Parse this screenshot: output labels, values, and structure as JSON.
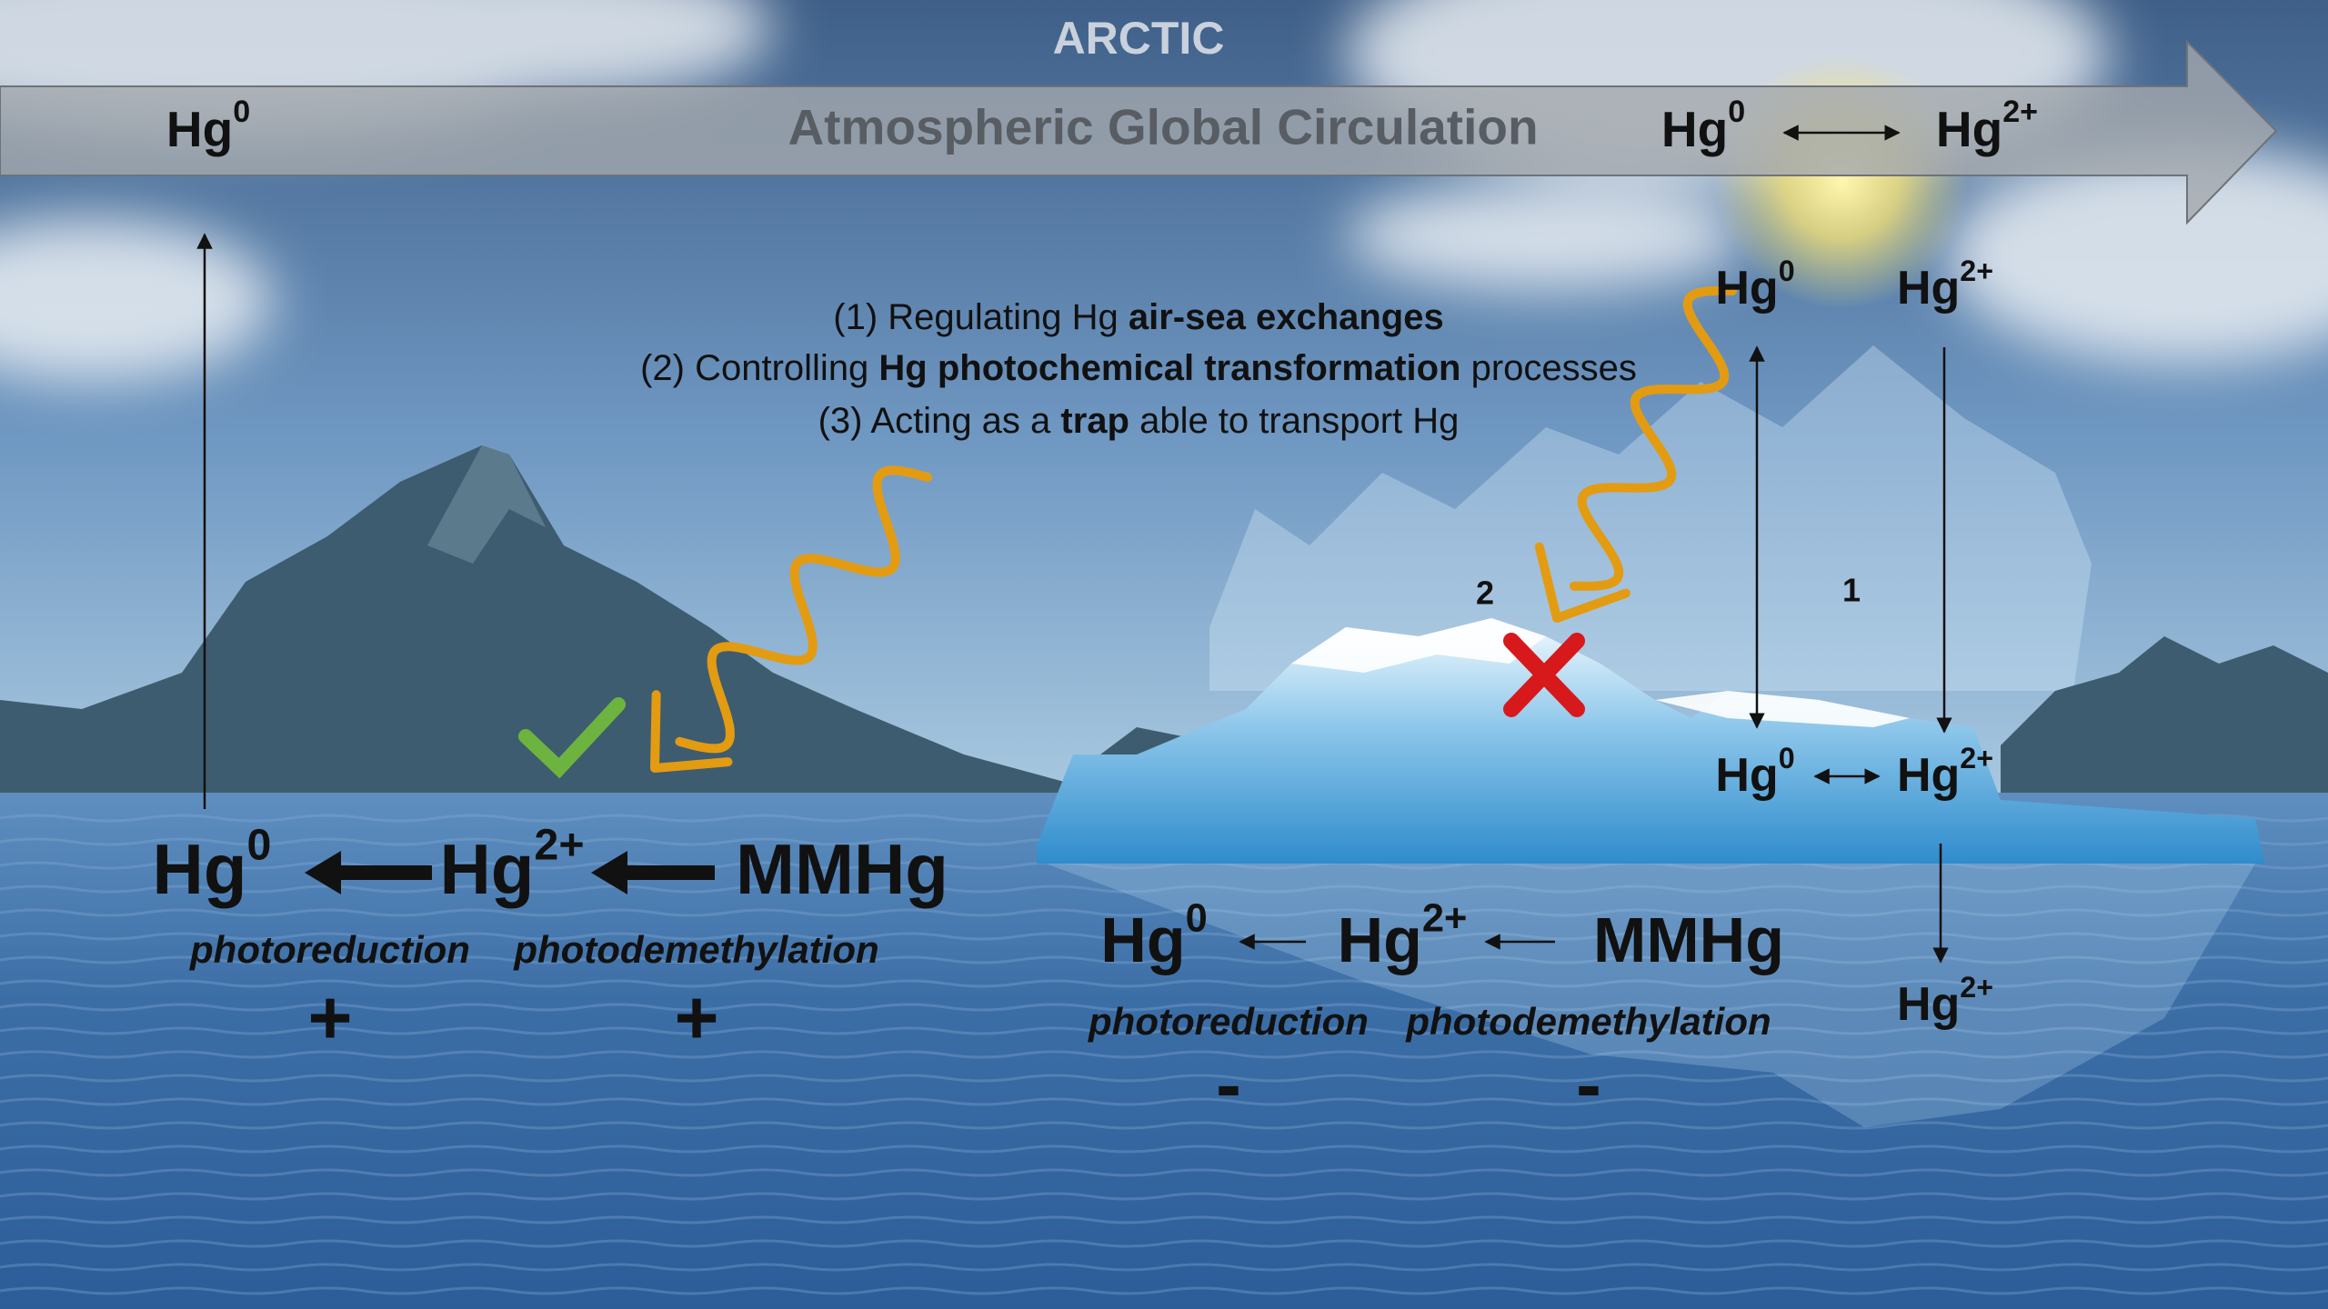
{
  "title": "ARCTIC",
  "banner": {
    "label": "Atmospheric Global Circulation",
    "left": {
      "base": "Hg",
      "sup": "0"
    },
    "right_a": {
      "base": "Hg",
      "sup": "0"
    },
    "right_b": {
      "base": "Hg",
      "sup": "2+"
    }
  },
  "roles": [
    [
      {
        "text": "(1) Regulating Hg "
      },
      {
        "text": "air-sea exchanges",
        "bold": true
      }
    ],
    [
      {
        "text": "(2) Controlling "
      },
      {
        "text": "Hg photochemical transformation",
        "bold": true
      },
      {
        "text": " processes"
      }
    ],
    [
      {
        "text": "(3) Acting as a "
      },
      {
        "text": "trap",
        "bold": true
      },
      {
        "text": " able to transport Hg"
      }
    ]
  ],
  "open_ocean": {
    "species": [
      {
        "base": "Hg",
        "sup": "0"
      },
      {
        "base": "Hg",
        "sup": "2+"
      },
      {
        "base": "MMHg"
      }
    ],
    "processes": [
      "photoreduction",
      "photodemethylation"
    ],
    "effects": [
      "+",
      "+"
    ]
  },
  "sea_ice": {
    "species": [
      {
        "base": "Hg",
        "sup": "0"
      },
      {
        "base": "Hg",
        "sup": "2+"
      },
      {
        "base": "MMHg"
      }
    ],
    "processes": [
      "photoreduction",
      "photodemethylation"
    ],
    "effects": [
      "-",
      "-"
    ]
  },
  "ice_column": {
    "top": [
      {
        "base": "Hg",
        "sup": "0"
      },
      {
        "base": "Hg",
        "sup": "2+"
      }
    ],
    "surface": [
      {
        "base": "Hg",
        "sup": "0"
      },
      {
        "base": "Hg",
        "sup": "2+"
      }
    ],
    "below": {
      "base": "Hg",
      "sup": "2+"
    }
  },
  "markers": [
    "2",
    "1"
  ]
}
